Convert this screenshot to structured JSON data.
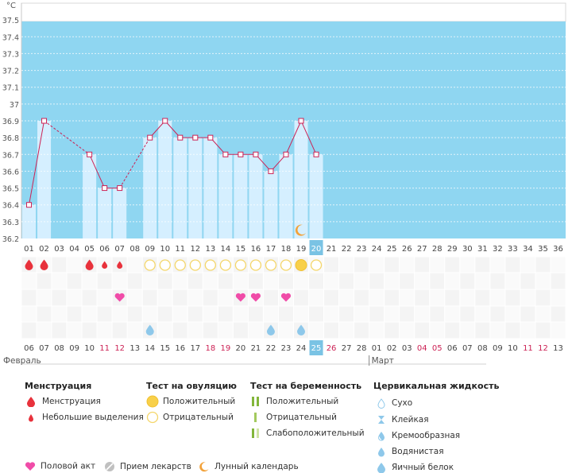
{
  "chart_data": {
    "type": "line",
    "unit": "°C",
    "ylim": [
      36.2,
      37.6
    ],
    "y_ticks": [
      "36.2",
      "36.3",
      "36.4",
      "36.5",
      "36.6",
      "36.7",
      "36.8",
      "36.9",
      "37",
      "37.1",
      "37.2",
      "37.3",
      "37.4",
      "37.5"
    ],
    "cycle_days": [
      "01",
      "02",
      "03",
      "04",
      "05",
      "06",
      "07",
      "08",
      "09",
      "10",
      "11",
      "12",
      "13",
      "14",
      "15",
      "16",
      "17",
      "18",
      "19",
      "20",
      "21",
      "22",
      "23",
      "24",
      "25",
      "26",
      "27",
      "28",
      "29",
      "30",
      "31",
      "32",
      "33",
      "34",
      "35",
      "36"
    ],
    "current_day": 20,
    "temperature": [
      {
        "day": 1,
        "value": 36.4
      },
      {
        "day": 2,
        "value": 36.9
      },
      {
        "day": 5,
        "value": 36.7
      },
      {
        "day": 6,
        "value": 36.5
      },
      {
        "day": 7,
        "value": 36.5
      },
      {
        "day": 9,
        "value": 36.8
      },
      {
        "day": 10,
        "value": 36.9
      },
      {
        "day": 11,
        "value": 36.8
      },
      {
        "day": 12,
        "value": 36.8
      },
      {
        "day": 13,
        "value": 36.8
      },
      {
        "day": 14,
        "value": 36.7
      },
      {
        "day": 15,
        "value": 36.7
      },
      {
        "day": 16,
        "value": 36.7
      },
      {
        "day": 17,
        "value": 36.6
      },
      {
        "day": 18,
        "value": 36.7
      },
      {
        "day": 19,
        "value": 36.9
      },
      {
        "day": 20,
        "value": 36.7
      }
    ],
    "moon_day": 19,
    "menstruation": [
      {
        "day": 1,
        "type": "full"
      },
      {
        "day": 2,
        "type": "full"
      },
      {
        "day": 5,
        "type": "full"
      },
      {
        "day": 6,
        "type": "light"
      },
      {
        "day": 7,
        "type": "light"
      }
    ],
    "ovulation_tests": [
      {
        "day": 9,
        "result": "negative"
      },
      {
        "day": 10,
        "result": "negative"
      },
      {
        "day": 11,
        "result": "negative"
      },
      {
        "day": 12,
        "result": "negative"
      },
      {
        "day": 13,
        "result": "negative"
      },
      {
        "day": 14,
        "result": "negative"
      },
      {
        "day": 15,
        "result": "negative"
      },
      {
        "day": 16,
        "result": "negative"
      },
      {
        "day": 17,
        "result": "negative"
      },
      {
        "day": 18,
        "result": "negative"
      },
      {
        "day": 19,
        "result": "positive"
      },
      {
        "day": 20,
        "result": "negative"
      }
    ],
    "intercourse_days": [
      7,
      15,
      16,
      18
    ],
    "cervical_fluid": [
      {
        "day": 9,
        "type": "watery"
      },
      {
        "day": 17,
        "type": "eggwhite"
      },
      {
        "day": 19,
        "type": "eggwhite"
      }
    ],
    "dates": [
      {
        "label": "06",
        "weekend": false
      },
      {
        "label": "07",
        "weekend": false
      },
      {
        "label": "08",
        "weekend": false
      },
      {
        "label": "09",
        "weekend": false
      },
      {
        "label": "10",
        "weekend": false
      },
      {
        "label": "11",
        "weekend": true
      },
      {
        "label": "12",
        "weekend": true
      },
      {
        "label": "13",
        "weekend": false
      },
      {
        "label": "14",
        "weekend": false
      },
      {
        "label": "15",
        "weekend": false
      },
      {
        "label": "16",
        "weekend": false
      },
      {
        "label": "17",
        "weekend": false
      },
      {
        "label": "18",
        "weekend": true
      },
      {
        "label": "19",
        "weekend": true
      },
      {
        "label": "20",
        "weekend": false
      },
      {
        "label": "21",
        "weekend": false
      },
      {
        "label": "22",
        "weekend": false
      },
      {
        "label": "23",
        "weekend": false
      },
      {
        "label": "24",
        "weekend": false
      },
      {
        "label": "25",
        "weekend": true
      },
      {
        "label": "26",
        "weekend": true
      },
      {
        "label": "27",
        "weekend": false
      },
      {
        "label": "28",
        "weekend": false
      },
      {
        "label": "01",
        "weekend": false
      },
      {
        "label": "02",
        "weekend": false
      },
      {
        "label": "03",
        "weekend": false
      },
      {
        "label": "04",
        "weekend": true
      },
      {
        "label": "05",
        "weekend": true
      },
      {
        "label": "06",
        "weekend": false
      },
      {
        "label": "07",
        "weekend": false
      },
      {
        "label": "08",
        "weekend": false
      },
      {
        "label": "09",
        "weekend": false
      },
      {
        "label": "10",
        "weekend": false
      },
      {
        "label": "11",
        "weekend": true
      },
      {
        "label": "12",
        "weekend": true
      },
      {
        "label": "13",
        "weekend": false
      }
    ],
    "month_labels": [
      {
        "label": "Февраль",
        "start_index": 0
      },
      {
        "label": "Март",
        "start_index": 23
      }
    ]
  },
  "colors": {
    "plot_bg": "#8fd6f1",
    "bar": "#d5efff",
    "line": "#cc2255",
    "menstruation": "#e8323c",
    "heart": "#f04ca8",
    "ovulation_positive": "#f8d04a",
    "ovulation_negative": "#f4d66a",
    "fluid": "#8ec8ea",
    "moon": "#f2a23a",
    "weekend_text": "#cc2255",
    "pregnancy_positive": "#82b63a",
    "pregnancy_negative": "#a3c95e",
    "pregnancy_weak": "#cfe4a3",
    "medicine": "#c0c0c0",
    "highlight": "#7ac3e4"
  },
  "legend": {
    "menstruation": {
      "title": "Менструация",
      "items": [
        "Менструация",
        "Небольшие выделения"
      ]
    },
    "ovulation": {
      "title": "Тест на овуляцию",
      "items": [
        "Положительный",
        "Отрицательный"
      ]
    },
    "pregnancy": {
      "title": "Тест на беременность",
      "items": [
        "Положительный",
        "Отрицательный",
        "Слабоположительный"
      ]
    },
    "cervical": {
      "title": "Цервикальная жидкость",
      "items": [
        "Сухо",
        "Клейкая",
        "Кремообразная",
        "Водянистая",
        "Яичный белок"
      ]
    },
    "bottom": [
      "Половой акт",
      "Прием лекарств",
      "Лунный календарь"
    ]
  }
}
